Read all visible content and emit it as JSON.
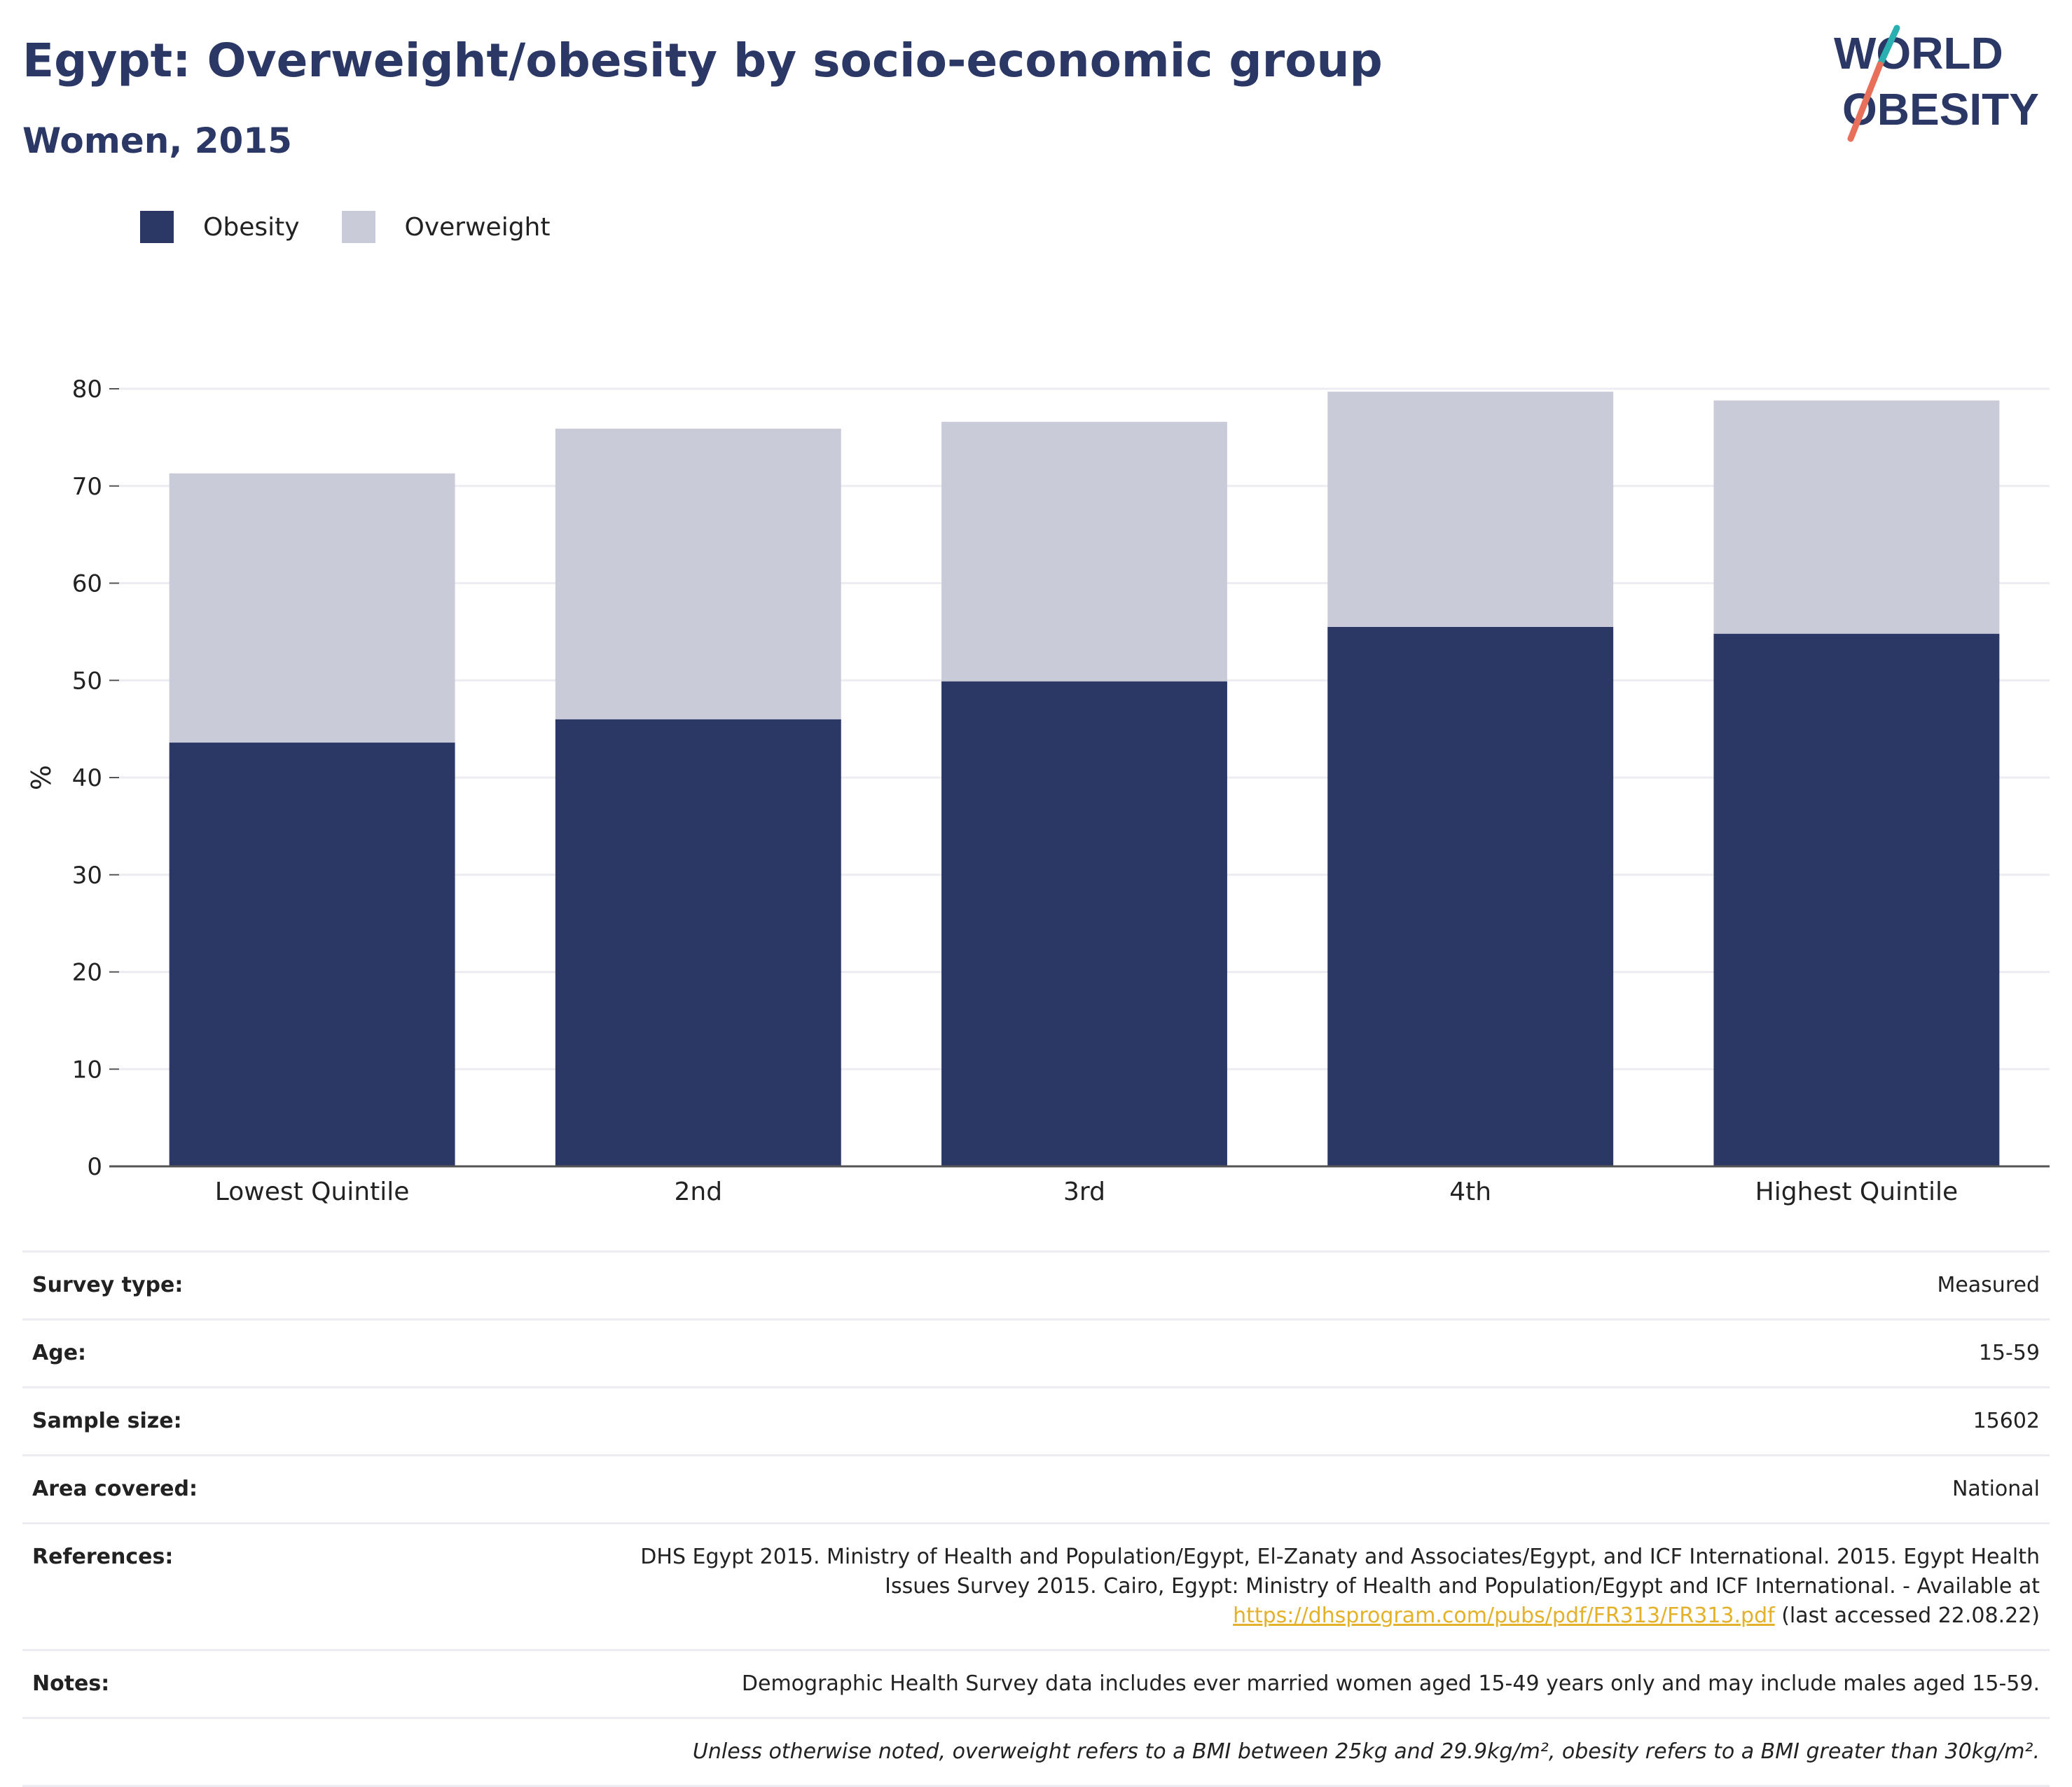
{
  "header": {
    "title": "Egypt: Overweight/obesity by socio-economic group",
    "subtitle": "Women, 2015"
  },
  "logo": {
    "line1": "WORLD",
    "line2": "OBESITY",
    "colors": {
      "text": "#2b3765",
      "slash_top": "#2ab0b0",
      "slash_bottom": "#e8705a"
    }
  },
  "colors": {
    "obesity": "#2b3765",
    "overweight": "#c9cbd8",
    "grid": "#ececf2",
    "axis": "#555555",
    "link": "#e3b12a"
  },
  "chart_data": {
    "type": "bar",
    "stacked": true,
    "categories": [
      "Lowest Quintile",
      "2nd",
      "3rd",
      "4th",
      "Highest Quintile"
    ],
    "series": [
      {
        "name": "Obesity",
        "values": [
          43.6,
          46.0,
          49.9,
          55.5,
          54.8
        ]
      },
      {
        "name": "Overweight",
        "values": [
          27.7,
          29.9,
          26.7,
          24.2,
          24.0
        ]
      }
    ],
    "ylabel": "%",
    "ylim": [
      0,
      80
    ],
    "yticks": [
      0,
      10,
      20,
      30,
      40,
      50,
      60,
      70,
      80
    ],
    "grid": true,
    "legend_position": "top-left"
  },
  "info": {
    "rows": [
      {
        "key": "Survey type:",
        "value": "Measured"
      },
      {
        "key": "Age:",
        "value": "15-59"
      },
      {
        "key": "Sample size:",
        "value": "15602"
      },
      {
        "key": "Area covered:",
        "value": "National"
      }
    ],
    "references": {
      "key": "References:",
      "line1": "DHS Egypt 2015. Ministry of Health and Population/Egypt, El-Zanaty and Associates/Egypt, and ICF International. 2015. Egypt Health",
      "line2": "Issues Survey 2015. Cairo, Egypt: Ministry of Health and Population/Egypt and ICF International. - Available at",
      "link": "https://dhsprogram.com/pubs/pdf/FR313/FR313.pdf",
      "suffix": " (last accessed 22.08.22)"
    },
    "notes": {
      "key": "Notes:",
      "value": "Demographic Health Survey data includes ever married women aged 15-49 years only and may include males aged 15-59."
    },
    "footnote": "Unless otherwise noted, overweight refers to a BMI between 25kg and 29.9kg/m², obesity refers to a BMI greater than 30kg/m²."
  }
}
